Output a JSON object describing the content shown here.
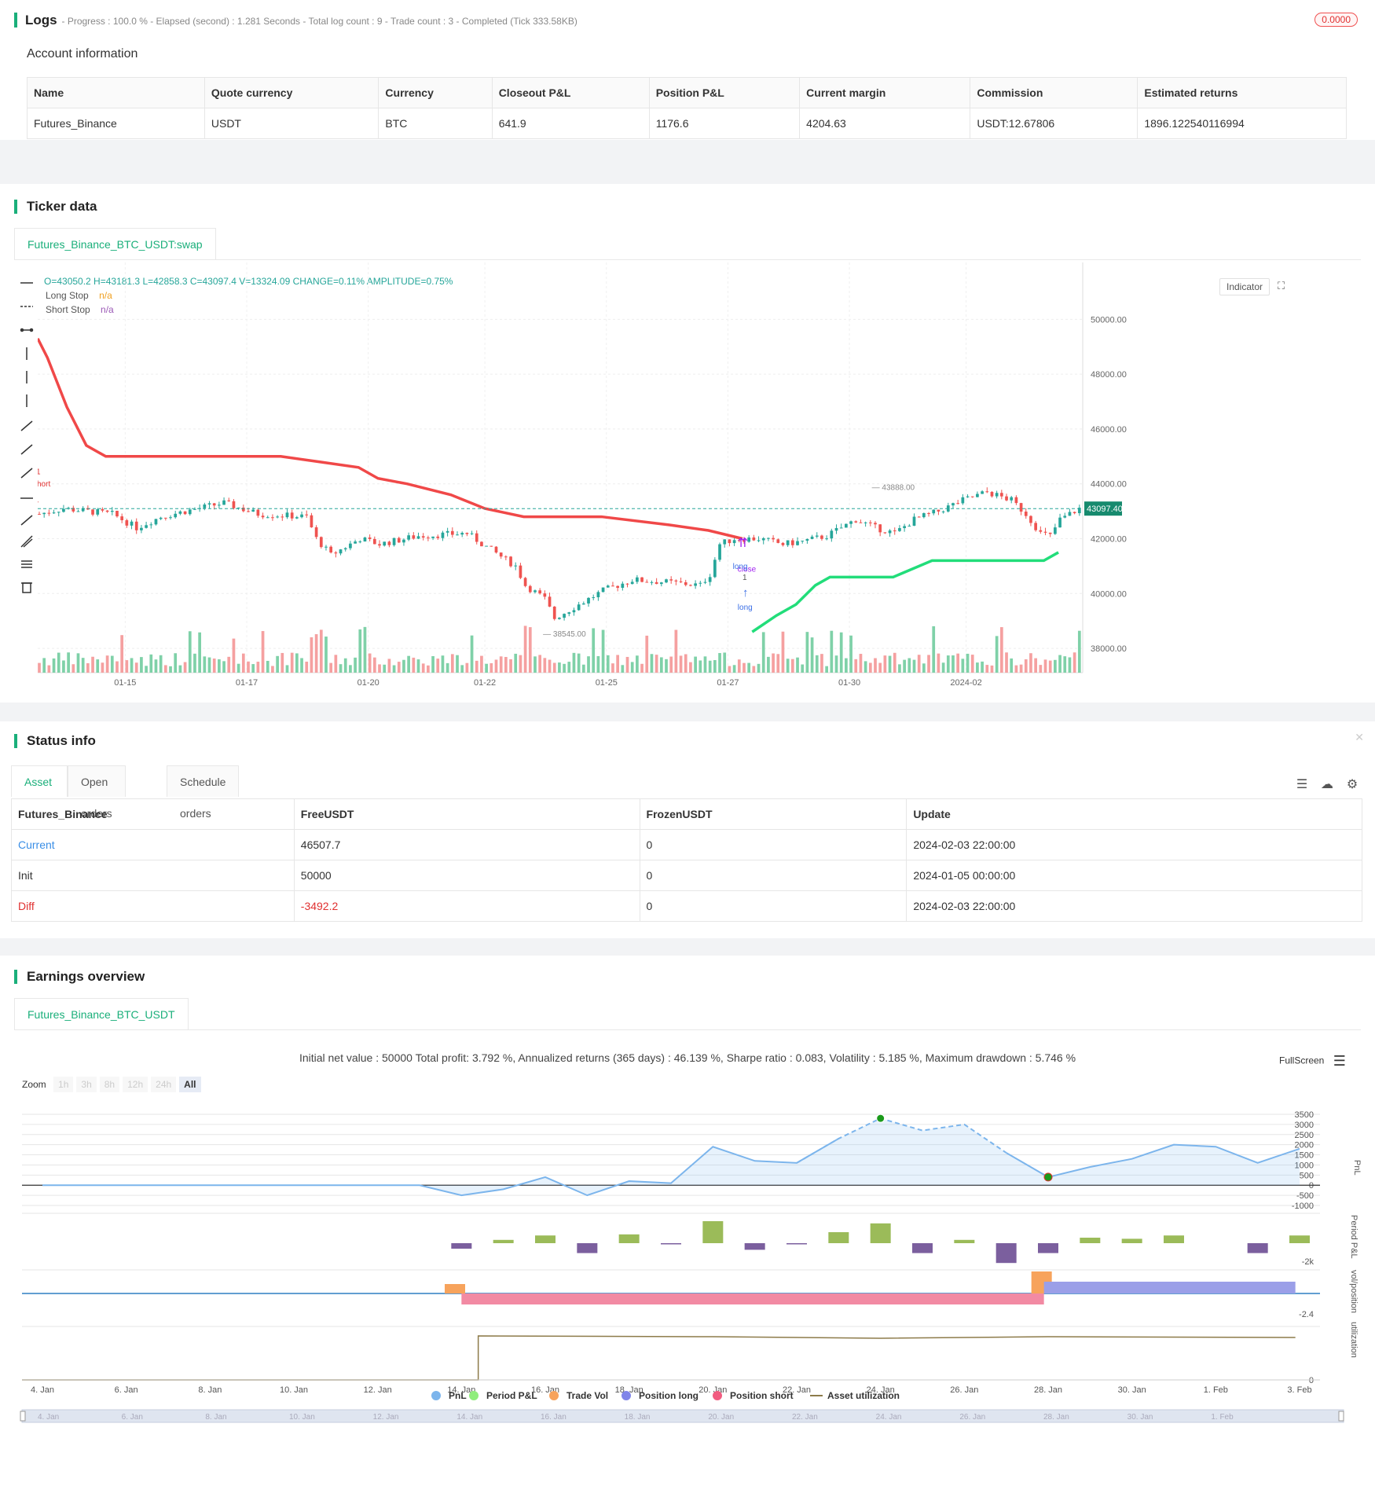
{
  "logs": {
    "title": "Logs",
    "status": "- Progress : 100.0 % - Elapsed (second) : 1.281 Seconds - Total log count : 9 - Trade count : 3 - Completed (Tick 333.58KB)",
    "badge": "0.0000"
  },
  "account": {
    "title": "Account information",
    "headers": [
      "Name",
      "Quote currency",
      "Currency",
      "Closeout P&L",
      "Position P&L",
      "Current margin",
      "Commission",
      "Estimated returns"
    ],
    "row": [
      "Futures_Binance",
      "USDT",
      "BTC",
      "641.9",
      "1176.6",
      "4204.63",
      "USDT:12.67806",
      "1896.122540116994"
    ]
  },
  "ticker": {
    "title": "Ticker data",
    "tab": "Futures_Binance_BTC_USDT:swap",
    "ohlc": "O=43050.2 H=43181.3 L=42858.3 C=43097.4 V=13324.09 CHANGE=0.11% AMPLITUDE=0.75%",
    "legend": [
      {
        "name": "Long Stop",
        "value": "n/a",
        "color": "#f0a020"
      },
      {
        "name": "Short Stop",
        "value": "n/a",
        "color": "#9b59b6"
      }
    ],
    "indicator_label": "Indicator",
    "price_tag": "43097.40",
    "high_label": "43888.00",
    "low_label": "38545.00",
    "markers": {
      "short_num": "1",
      "short_label": "short",
      "close_label": "close",
      "long_label": "long",
      "long_num": "1",
      "long2_label": "long"
    }
  },
  "chart_data": [
    {
      "type": "candlestick",
      "x_ticks": [
        "01-15",
        "01-17",
        "01-20",
        "01-22",
        "01-25",
        "01-27",
        "01-30",
        "2024-02"
      ],
      "y_ticks": [
        50000.0,
        48000.0,
        46000.0,
        44000.0,
        42000.0,
        40000.0,
        38000.0
      ],
      "ylim": [
        37400,
        51500
      ],
      "last_price": 43097.4,
      "high": 43888.0,
      "low": 38545.0,
      "series": [
        {
          "name": "Short Stop",
          "color": "#f04848",
          "points": [
            [
              0,
              49300
            ],
            [
              2,
              48600
            ],
            [
              6,
              46800
            ],
            [
              10,
              45400
            ],
            [
              14,
              45000
            ],
            [
              50,
              45000
            ],
            [
              58,
              44800
            ],
            [
              66,
              44600
            ],
            [
              70,
              44200
            ],
            [
              76,
              44000
            ],
            [
              85,
              43600
            ],
            [
              92,
              43100
            ],
            [
              100,
              42800
            ],
            [
              116,
              42800
            ],
            [
              130,
              42500
            ],
            [
              138,
              42300
            ],
            [
              145,
              42000
            ]
          ]
        },
        {
          "name": "Long Stop",
          "color": "#22dd7a",
          "points": [
            [
              147,
              38600
            ],
            [
              152,
              39200
            ],
            [
              156,
              39600
            ],
            [
              160,
              40300
            ],
            [
              163,
              40600
            ],
            [
              176,
              40600
            ],
            [
              180,
              40900
            ],
            [
              184,
              41200
            ],
            [
              200,
              41200
            ],
            [
              207,
              41200
            ],
            [
              210,
              41500
            ]
          ]
        }
      ]
    },
    {
      "type": "line",
      "summary": "Initial net value : 50000 Total profit: 3.792 %, Annualized returns (365 days) : 46.139 %, Sharpe ratio : 0.083, Volatility : 5.185 %, Maximum drawdown : 5.746 %",
      "x_ticks": [
        "4. Jan",
        "6. Jan",
        "8. Jan",
        "10. Jan",
        "12. Jan",
        "14. Jan",
        "16. Jan",
        "18. Jan",
        "20. Jan",
        "22. Jan",
        "24. Jan",
        "26. Jan",
        "28. Jan",
        "30. Jan",
        "1. Feb",
        "3. Feb"
      ],
      "pnl_y_ticks": [
        "3500",
        "3000",
        "2500",
        "2000",
        "1500",
        "1000",
        "500",
        "0",
        "-500",
        "-1000"
      ],
      "pnl_ylim": [
        -1000,
        3500
      ],
      "pnl": [
        [
          4,
          0
        ],
        [
          13,
          0
        ],
        [
          14,
          -500
        ],
        [
          15,
          -200
        ],
        [
          16,
          400
        ],
        [
          17,
          -500
        ],
        [
          18,
          200
        ],
        [
          19,
          100
        ],
        [
          20,
          1900
        ],
        [
          21,
          1200
        ],
        [
          22,
          1100
        ],
        [
          23,
          2300
        ],
        [
          24,
          3300
        ],
        [
          25,
          2700
        ],
        [
          26,
          3000
        ],
        [
          27,
          1600
        ],
        [
          28,
          400
        ],
        [
          29,
          900
        ],
        [
          30,
          1300
        ],
        [
          31,
          2000
        ],
        [
          32,
          1900
        ],
        [
          33,
          1100
        ],
        [
          34,
          1800
        ]
      ],
      "period_pnl": [
        [
          14,
          -250
        ],
        [
          15,
          150
        ],
        [
          16,
          350
        ],
        [
          17,
          -450
        ],
        [
          18,
          400
        ],
        [
          19,
          -50
        ],
        [
          20,
          1000
        ],
        [
          21,
          -300
        ],
        [
          22,
          -20
        ],
        [
          23,
          500
        ],
        [
          24,
          900
        ],
        [
          25,
          -450
        ],
        [
          26,
          150
        ],
        [
          27,
          -900
        ],
        [
          28,
          -450
        ],
        [
          29,
          250
        ],
        [
          30,
          200
        ],
        [
          31,
          350
        ],
        [
          33,
          -450
        ],
        [
          34,
          350
        ]
      ],
      "period_axis_label": "-2k",
      "vol_axis_label": "-2.4",
      "util_axis_label": "0",
      "zoom_buttons": [
        "1h",
        "3h",
        "8h",
        "12h",
        "24h",
        "All"
      ],
      "legend": [
        {
          "name": "PnL",
          "color": "#7cb5ec"
        },
        {
          "name": "Period P&L",
          "color": "#90ed7d"
        },
        {
          "name": "Trade Vol",
          "color": "#f7a35c"
        },
        {
          "name": "Position long",
          "color": "#8085e9"
        },
        {
          "name": "Position short",
          "color": "#f15c80"
        },
        {
          "name": "Asset utilization",
          "color": "#8d7b4a"
        }
      ]
    }
  ],
  "status": {
    "title": "Status info",
    "tabs": [
      "Asset",
      "Open orders",
      "Schedule orders"
    ],
    "headers": [
      "Futures_Binance",
      "FreeUSDT",
      "FrozenUSDT",
      "Update"
    ],
    "rows": [
      [
        "Current",
        "46507.7",
        "0",
        "2024-02-03 22:00:00"
      ],
      [
        "Init",
        "50000",
        "0",
        "2024-01-05 00:00:00"
      ],
      [
        "Diff",
        "-3492.2",
        "0",
        "2024-02-03 22:00:00"
      ]
    ]
  },
  "earnings": {
    "title": "Earnings overview",
    "tab": "Futures_Binance_BTC_USDT",
    "zoom_label": "Zoom",
    "fullscreen": "FullScreen",
    "axis_titles": [
      "PnL",
      "Period P&L",
      "vol/position",
      "utilization"
    ]
  },
  "colors": {
    "accent": "#1aaf7a",
    "up": "#26a69a",
    "down": "#ef5350"
  }
}
